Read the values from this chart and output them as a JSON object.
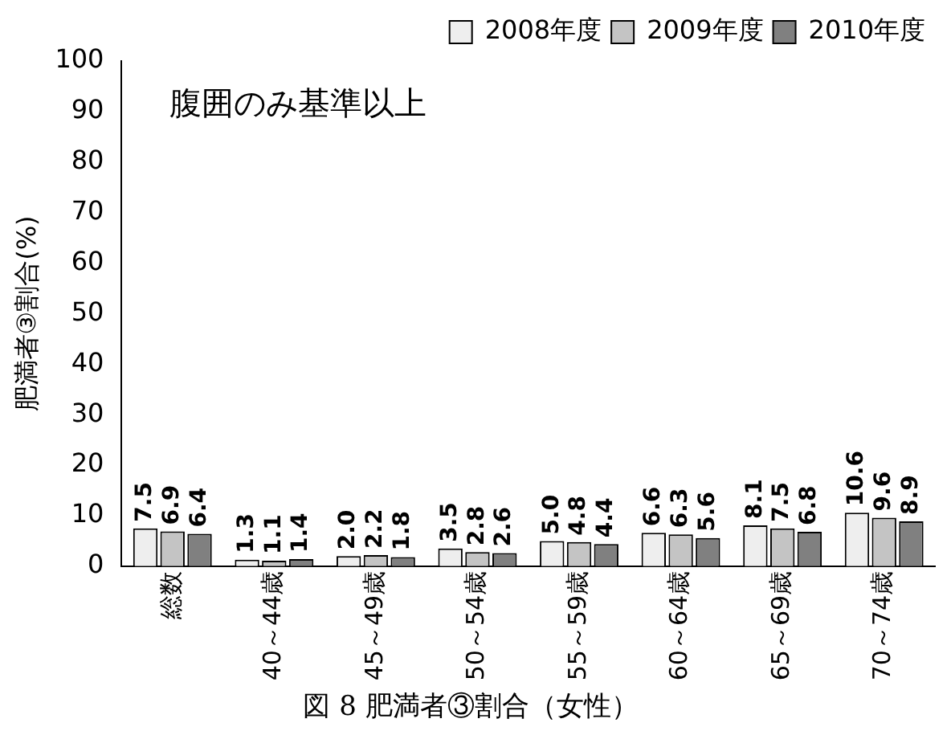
{
  "chart_data": {
    "type": "bar",
    "title": "図 8 肥満者③割合（女性）",
    "ylabel": "肥満者③割合(%)",
    "annotations": [
      "腹囲のみ基準以上"
    ],
    "categories": [
      "総数",
      "40～44歳",
      "45～49歳",
      "50～54歳",
      "55～59歳",
      "60～64歳",
      "65～69歳",
      "70～74歳"
    ],
    "series": [
      {
        "name": "2008年度",
        "color": "#eeeeee",
        "values": [
          7.5,
          1.3,
          2.0,
          3.5,
          5.0,
          6.6,
          8.1,
          10.6
        ],
        "value_labels": [
          "7.5",
          "1.3",
          "2.0",
          "3.5",
          "5.0",
          "6.6",
          "8.1",
          "10.6"
        ]
      },
      {
        "name": "2009年度",
        "color": "#c4c4c4",
        "values": [
          6.9,
          1.1,
          2.2,
          2.8,
          4.8,
          6.3,
          7.5,
          9.6
        ],
        "value_labels": [
          "6.9",
          "1.1",
          "2.2",
          "2.8",
          "4.8",
          "6.3",
          "7.5",
          "9.6"
        ]
      },
      {
        "name": "2010年度",
        "color": "#808080",
        "values": [
          6.4,
          1.4,
          1.8,
          2.6,
          4.4,
          5.6,
          6.8,
          8.9
        ],
        "value_labels": [
          "6.4",
          "1.4",
          "1.8",
          "2.6",
          "4.4",
          "5.6",
          "6.8",
          "8.9"
        ]
      }
    ],
    "ylim": [
      0,
      100
    ],
    "yticks": [
      0,
      10,
      20,
      30,
      40,
      50,
      60,
      70,
      80,
      90,
      100
    ],
    "grid": false,
    "legend": "top right"
  }
}
